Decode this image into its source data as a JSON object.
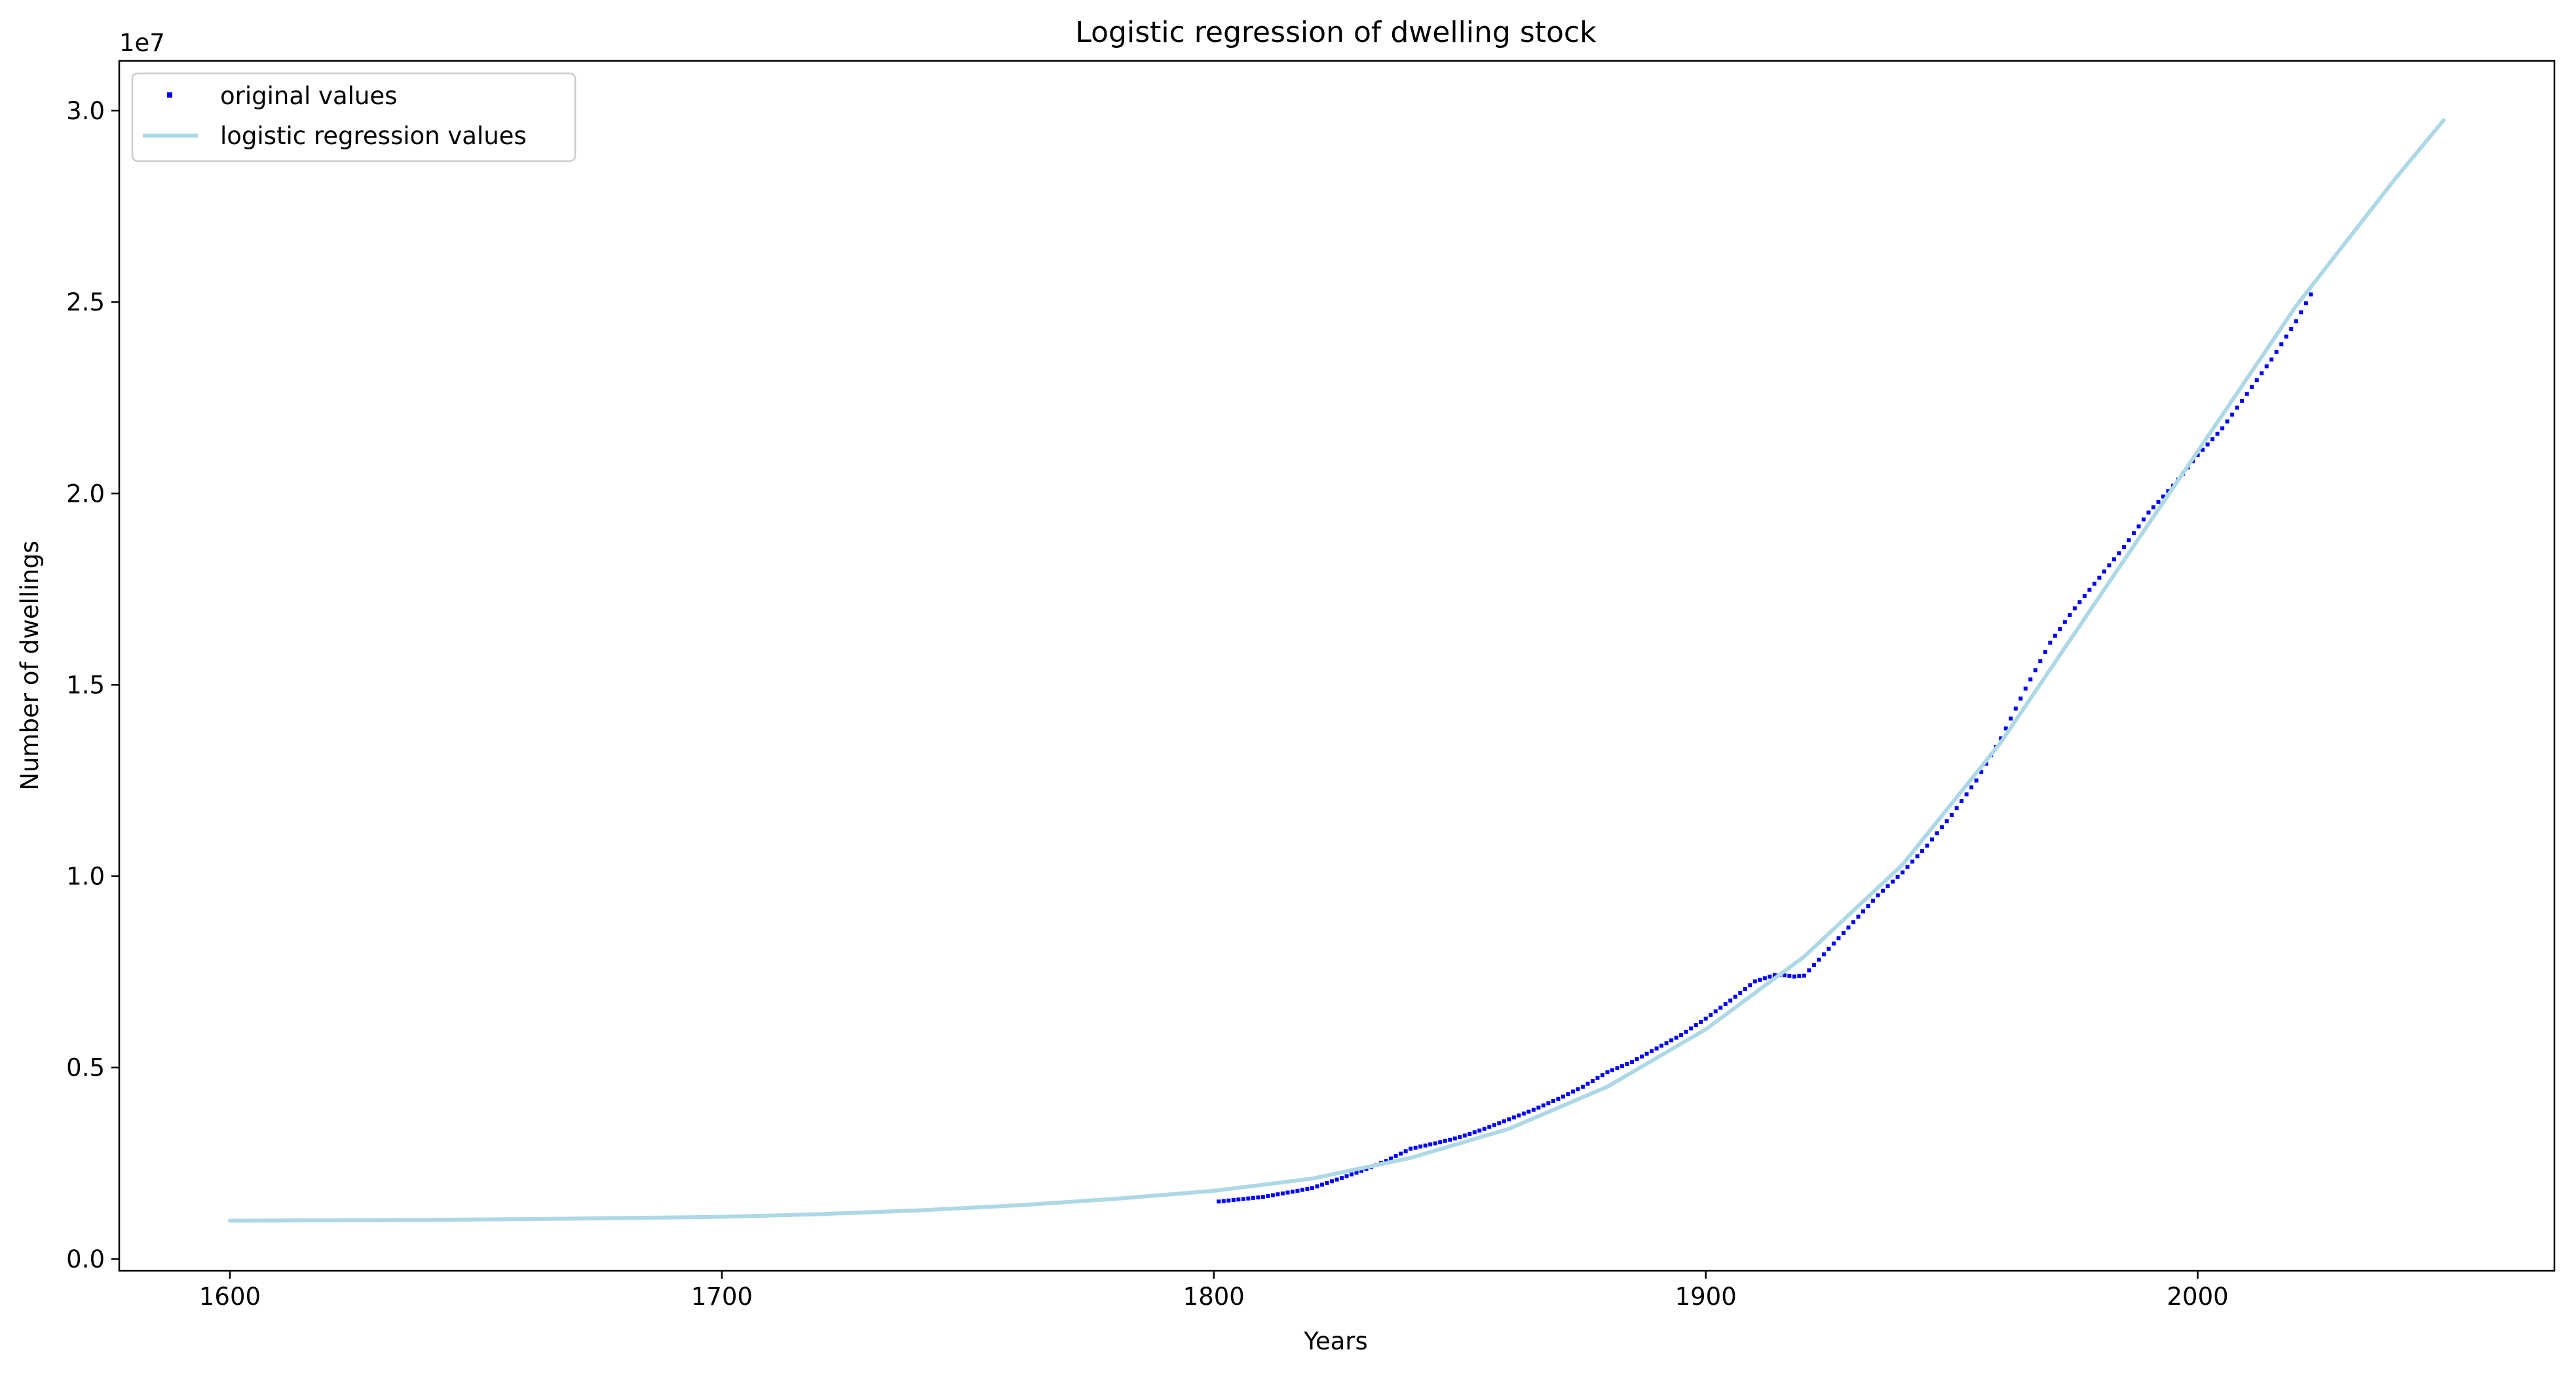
{
  "chart_data": {
    "type": "line",
    "title": "Logistic regression of dwelling stock",
    "xlabel": "Years",
    "ylabel": "Number of dwellings",
    "y_offset_label": "1e7",
    "xlim": [
      1577.5,
      2072.5
    ],
    "ylim": [
      -310000,
      31300000
    ],
    "x_ticks": [
      1600,
      1700,
      1800,
      1900,
      2000
    ],
    "x_tick_labels": [
      "1600",
      "1700",
      "1800",
      "1900",
      "2000"
    ],
    "y_ticks": [
      0,
      5000000,
      10000000,
      15000000,
      20000000,
      25000000,
      30000000
    ],
    "y_tick_labels": [
      "0.0",
      "0.5",
      "1.0",
      "1.5",
      "2.0",
      "2.5",
      "3.0"
    ],
    "grid": false,
    "legend_position": "upper-left",
    "series": [
      {
        "name": "original values",
        "style": "points",
        "color": "#0000ff",
        "x": [
          1801,
          1810,
          1820,
          1830,
          1835,
          1840,
          1845,
          1850,
          1855,
          1860,
          1865,
          1870,
          1875,
          1880,
          1885,
          1890,
          1895,
          1900,
          1905,
          1910,
          1914,
          1916,
          1918,
          1920,
          1925,
          1930,
          1935,
          1940,
          1945,
          1950,
          1955,
          1960,
          1965,
          1970,
          1975,
          1980,
          1985,
          1990,
          1995,
          2000,
          2005,
          2010,
          2015,
          2020,
          2023
        ],
        "y": [
          1500000,
          1620000,
          1850000,
          2300000,
          2560000,
          2880000,
          3020000,
          3180000,
          3400000,
          3650000,
          3900000,
          4180000,
          4500000,
          4880000,
          5150000,
          5500000,
          5850000,
          6280000,
          6750000,
          7250000,
          7420000,
          7410000,
          7380000,
          7400000,
          8100000,
          8800000,
          9500000,
          10100000,
          10800000,
          11600000,
          12500000,
          13600000,
          14900000,
          16100000,
          17000000,
          17800000,
          18600000,
          19500000,
          20200000,
          21000000,
          21700000,
          22600000,
          23500000,
          24500000,
          25200000
        ]
      },
      {
        "name": "logistic regression values",
        "style": "line",
        "color": "#add8e6",
        "x": [
          1600,
          1620,
          1640,
          1660,
          1680,
          1700,
          1720,
          1740,
          1760,
          1780,
          1800,
          1820,
          1840,
          1860,
          1880,
          1900,
          1920,
          1940,
          1960,
          1980,
          2000,
          2020,
          2040,
          2050
        ],
        "y": [
          1000000,
          1010000,
          1020000,
          1040000,
          1070000,
          1100000,
          1170000,
          1270000,
          1400000,
          1570000,
          1780000,
          2100000,
          2640000,
          3400000,
          4500000,
          6000000,
          7900000,
          10300000,
          13500000,
          17300000,
          21100000,
          24900000,
          28200000,
          29750000
        ]
      }
    ]
  }
}
